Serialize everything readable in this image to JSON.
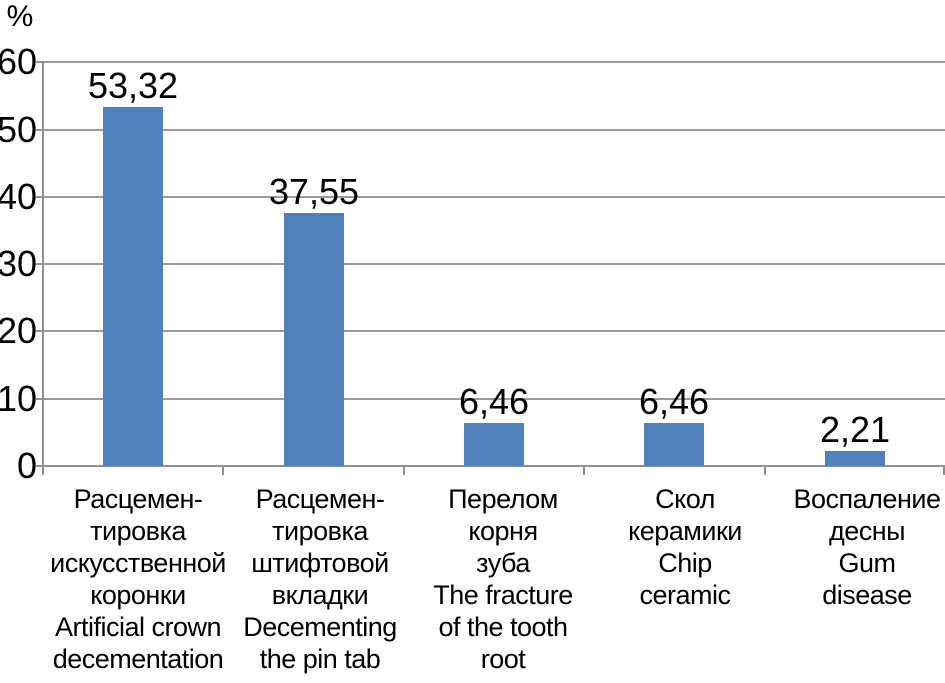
{
  "chart_data": {
    "type": "bar",
    "title": "",
    "xlabel": "",
    "ylabel": "%",
    "ylim": [
      0,
      60
    ],
    "y_ticks": [
      0,
      10,
      20,
      30,
      40,
      50,
      60
    ],
    "grid": true,
    "legend": "none",
    "bar_color": "#4F81BD",
    "grid_color": "#9A9A9A",
    "axis_color": "#919191",
    "text_color": "#000000",
    "categories": [
      "Расцемен-\nтировка\nискусственной\nкоронки\nArtificial crown\ndecementation",
      "Расцемен-\nтировка\nштифтовой\nвкладки\nDecementing\nthe pin tab",
      "Перелом\nкорня\nзуба\nThe fracture\nof the tooth\nroot",
      "Скол\nкерамики\nChip\nceramic",
      "Воспаление\nдесны\nGum\ndisease"
    ],
    "values": [
      53.32,
      37.55,
      6.46,
      6.46,
      2.21
    ],
    "value_labels": [
      "53,32",
      "37,55",
      "6,46",
      "6,46",
      "2,21"
    ]
  }
}
